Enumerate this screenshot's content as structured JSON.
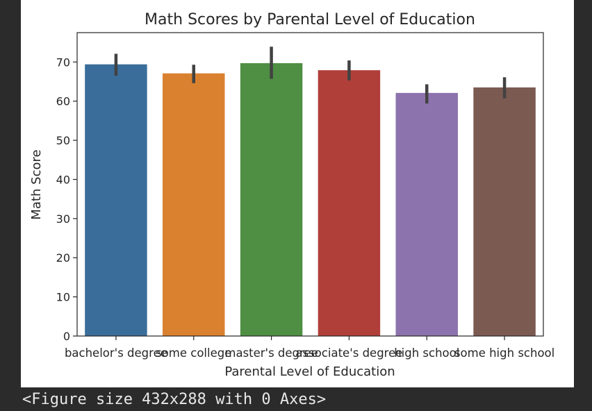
{
  "chart_data": {
    "type": "bar",
    "title": "Math Scores by Parental Level of Education",
    "xlabel": "Parental Level of Education",
    "ylabel": "Math Score",
    "ylim": [
      0,
      77.5
    ],
    "yticks": [
      0,
      10,
      20,
      30,
      40,
      50,
      60,
      70
    ],
    "grid": false,
    "categories": [
      "bachelor's degree",
      "some college",
      "master's degree",
      "associate's degree",
      "high school",
      "some high school"
    ],
    "values": [
      69.4,
      67.1,
      69.7,
      67.9,
      62.1,
      63.5
    ],
    "error_low": [
      66.5,
      64.6,
      65.7,
      65.3,
      59.4,
      60.7
    ],
    "error_high": [
      72.1,
      69.3,
      73.9,
      70.4,
      64.3,
      66.1
    ],
    "colors": [
      "#3a6d9a",
      "#da812f",
      "#4e8f43",
      "#b03f3a",
      "#8d73ad",
      "#7b5a52"
    ],
    "error_color": "#424242"
  },
  "console": {
    "text": "<Figure size 432x288 with 0 Axes>"
  }
}
